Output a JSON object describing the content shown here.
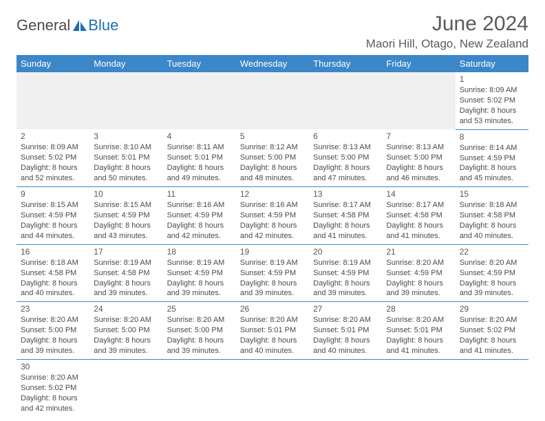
{
  "logo": {
    "text1": "General",
    "text2": "Blue",
    "icon_fill": "#1f6fb2"
  },
  "title": "June 2024",
  "location": "Maori Hill, Otago, New Zealand",
  "colors": {
    "header_bg": "#3b87c8",
    "header_text": "#ffffff",
    "cell_border": "#3b87c8",
    "blank_bg": "#f0f0f0",
    "text": "#4a4a4a"
  },
  "day_headers": [
    "Sunday",
    "Monday",
    "Tuesday",
    "Wednesday",
    "Thursday",
    "Friday",
    "Saturday"
  ],
  "weeks": [
    [
      null,
      null,
      null,
      null,
      null,
      null,
      {
        "n": "1",
        "sr": "8:09 AM",
        "ss": "5:02 PM",
        "dl": "8 hours and 53 minutes."
      }
    ],
    [
      {
        "n": "2",
        "sr": "8:09 AM",
        "ss": "5:02 PM",
        "dl": "8 hours and 52 minutes."
      },
      {
        "n": "3",
        "sr": "8:10 AM",
        "ss": "5:01 PM",
        "dl": "8 hours and 50 minutes."
      },
      {
        "n": "4",
        "sr": "8:11 AM",
        "ss": "5:01 PM",
        "dl": "8 hours and 49 minutes."
      },
      {
        "n": "5",
        "sr": "8:12 AM",
        "ss": "5:00 PM",
        "dl": "8 hours and 48 minutes."
      },
      {
        "n": "6",
        "sr": "8:13 AM",
        "ss": "5:00 PM",
        "dl": "8 hours and 47 minutes."
      },
      {
        "n": "7",
        "sr": "8:13 AM",
        "ss": "5:00 PM",
        "dl": "8 hours and 46 minutes."
      },
      {
        "n": "8",
        "sr": "8:14 AM",
        "ss": "4:59 PM",
        "dl": "8 hours and 45 minutes."
      }
    ],
    [
      {
        "n": "9",
        "sr": "8:15 AM",
        "ss": "4:59 PM",
        "dl": "8 hours and 44 minutes."
      },
      {
        "n": "10",
        "sr": "8:15 AM",
        "ss": "4:59 PM",
        "dl": "8 hours and 43 minutes."
      },
      {
        "n": "11",
        "sr": "8:16 AM",
        "ss": "4:59 PM",
        "dl": "8 hours and 42 minutes."
      },
      {
        "n": "12",
        "sr": "8:16 AM",
        "ss": "4:59 PM",
        "dl": "8 hours and 42 minutes."
      },
      {
        "n": "13",
        "sr": "8:17 AM",
        "ss": "4:58 PM",
        "dl": "8 hours and 41 minutes."
      },
      {
        "n": "14",
        "sr": "8:17 AM",
        "ss": "4:58 PM",
        "dl": "8 hours and 41 minutes."
      },
      {
        "n": "15",
        "sr": "8:18 AM",
        "ss": "4:58 PM",
        "dl": "8 hours and 40 minutes."
      }
    ],
    [
      {
        "n": "16",
        "sr": "8:18 AM",
        "ss": "4:58 PM",
        "dl": "8 hours and 40 minutes."
      },
      {
        "n": "17",
        "sr": "8:19 AM",
        "ss": "4:58 PM",
        "dl": "8 hours and 39 minutes."
      },
      {
        "n": "18",
        "sr": "8:19 AM",
        "ss": "4:59 PM",
        "dl": "8 hours and 39 minutes."
      },
      {
        "n": "19",
        "sr": "8:19 AM",
        "ss": "4:59 PM",
        "dl": "8 hours and 39 minutes."
      },
      {
        "n": "20",
        "sr": "8:19 AM",
        "ss": "4:59 PM",
        "dl": "8 hours and 39 minutes."
      },
      {
        "n": "21",
        "sr": "8:20 AM",
        "ss": "4:59 PM",
        "dl": "8 hours and 39 minutes."
      },
      {
        "n": "22",
        "sr": "8:20 AM",
        "ss": "4:59 PM",
        "dl": "8 hours and 39 minutes."
      }
    ],
    [
      {
        "n": "23",
        "sr": "8:20 AM",
        "ss": "5:00 PM",
        "dl": "8 hours and 39 minutes."
      },
      {
        "n": "24",
        "sr": "8:20 AM",
        "ss": "5:00 PM",
        "dl": "8 hours and 39 minutes."
      },
      {
        "n": "25",
        "sr": "8:20 AM",
        "ss": "5:00 PM",
        "dl": "8 hours and 39 minutes."
      },
      {
        "n": "26",
        "sr": "8:20 AM",
        "ss": "5:01 PM",
        "dl": "8 hours and 40 minutes."
      },
      {
        "n": "27",
        "sr": "8:20 AM",
        "ss": "5:01 PM",
        "dl": "8 hours and 40 minutes."
      },
      {
        "n": "28",
        "sr": "8:20 AM",
        "ss": "5:01 PM",
        "dl": "8 hours and 41 minutes."
      },
      {
        "n": "29",
        "sr": "8:20 AM",
        "ss": "5:02 PM",
        "dl": "8 hours and 41 minutes."
      }
    ],
    [
      {
        "n": "30",
        "sr": "8:20 AM",
        "ss": "5:02 PM",
        "dl": "8 hours and 42 minutes."
      },
      null,
      null,
      null,
      null,
      null,
      null
    ]
  ],
  "labels": {
    "sunrise": "Sunrise:",
    "sunset": "Sunset:",
    "daylight": "Daylight:"
  }
}
